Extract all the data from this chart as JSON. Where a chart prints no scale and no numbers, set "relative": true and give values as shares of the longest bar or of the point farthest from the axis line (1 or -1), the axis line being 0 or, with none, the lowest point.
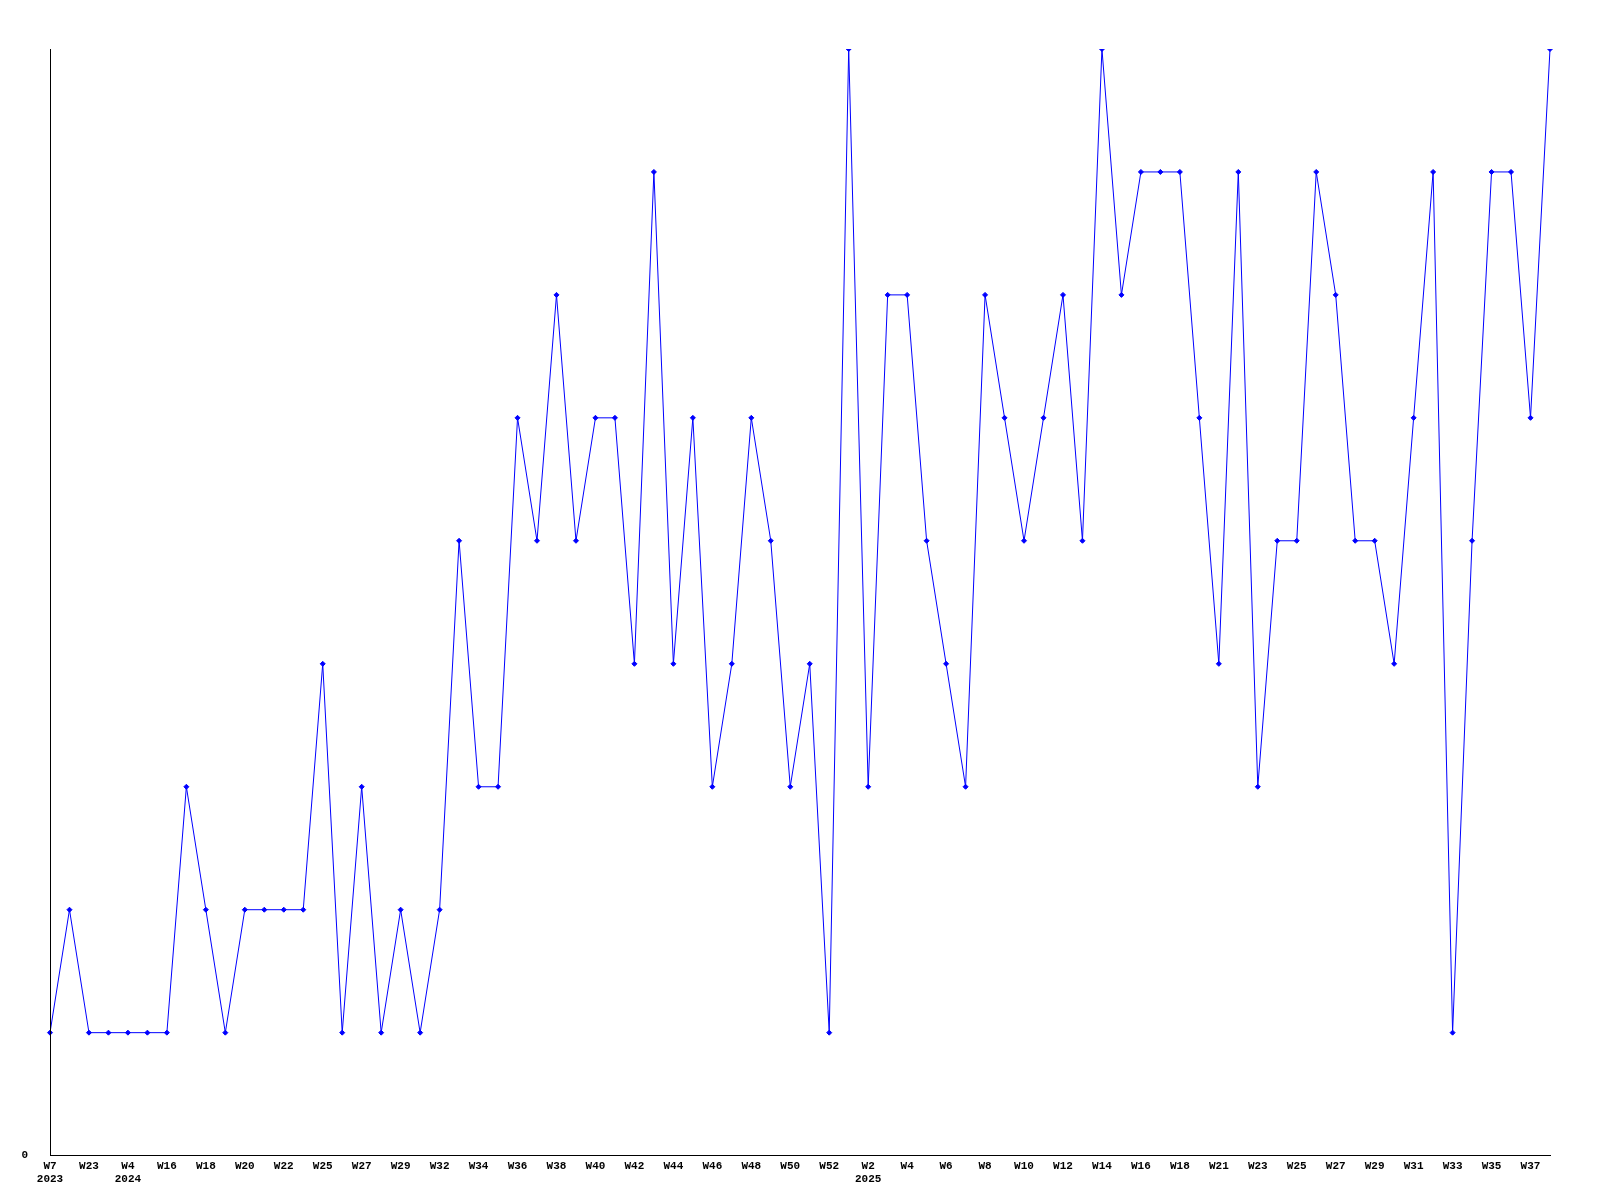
{
  "chart_data": {
    "type": "line",
    "relative": true,
    "marker": "diamond",
    "grid": false,
    "legend": false,
    "annotations": [
      "0"
    ],
    "categories": [
      "W7\n2023",
      null,
      "W23",
      null,
      "W4\n2024",
      null,
      "W16",
      null,
      "W18",
      null,
      "W20",
      null,
      "W22",
      null,
      "W25",
      null,
      "W27",
      null,
      "W29",
      null,
      "W32",
      null,
      "W34",
      null,
      "W36",
      null,
      "W38",
      null,
      "W40",
      null,
      "W42",
      null,
      "W44",
      null,
      "W46",
      null,
      "W48",
      null,
      "W50",
      null,
      "W52",
      null,
      "W2\n2025",
      null,
      "W4",
      null,
      "W6",
      null,
      "W8",
      null,
      "W10",
      null,
      "W12",
      null,
      "W14",
      null,
      "W16",
      null,
      "W18",
      null,
      "W21",
      null,
      "W23",
      null,
      "W25",
      null,
      "W27",
      null,
      "W29",
      null,
      "W31",
      null,
      "W33",
      null,
      "W35",
      null,
      "W37",
      null
    ],
    "series": [
      {
        "color": "#0000ff",
        "values": [
          0.1111,
          0.2222,
          0.1111,
          0.1111,
          0.1111,
          0.1111,
          0.1111,
          0.3333,
          0.2222,
          0.1111,
          0.2222,
          0.2222,
          0.2222,
          0.2222,
          0.4444,
          0.1111,
          0.3333,
          0.1111,
          0.2222,
          0.1111,
          0.2222,
          0.5556,
          0.3333,
          0.3333,
          0.6667,
          0.5556,
          0.7778,
          0.5556,
          0.6667,
          0.6667,
          0.4444,
          0.8889,
          0.4444,
          0.6667,
          0.3333,
          0.4444,
          0.6667,
          0.5556,
          0.3333,
          0.4444,
          0.1111,
          1,
          0.3333,
          0.7778,
          0.7778,
          0.5556,
          0.4444,
          0.3333,
          0.7778,
          0.6667,
          0.5556,
          0.6667,
          0.7778,
          0.5556,
          1,
          0.7778,
          0.8889,
          0.8889,
          0.8889,
          0.6667,
          0.4444,
          0.8889,
          0.3333,
          0.5556,
          0.5556,
          0.8889,
          0.7778,
          0.5556,
          0.5556,
          0.4444,
          0.6667,
          0.8889,
          0.1111,
          0.5556,
          0.8889,
          0.8889,
          0.6667,
          1
        ]
      }
    ]
  }
}
